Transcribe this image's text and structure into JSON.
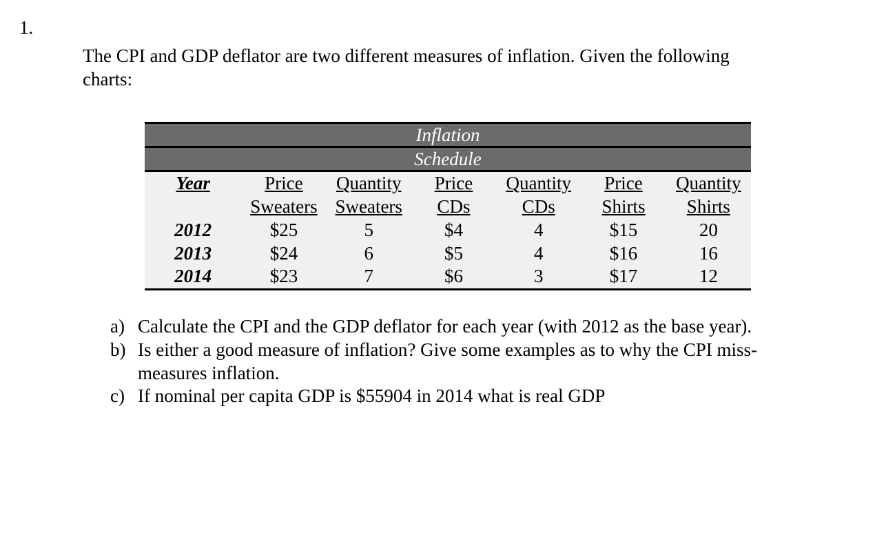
{
  "question_number": "1.",
  "intro": "The CPI and GDP deflator are two different measures of inflation.  Given the following charts:",
  "table": {
    "title_line1": "Inflation",
    "title_line2": "Schedule",
    "columns": [
      {
        "line1": "Year",
        "line2": ""
      },
      {
        "line1": "Price",
        "line2": "Sweaters"
      },
      {
        "line1": "Quantity",
        "line2": "Sweaters"
      },
      {
        "line1": "Price",
        "line2": "CDs"
      },
      {
        "line1": "Quantity",
        "line2": "CDs"
      },
      {
        "line1": "Price",
        "line2": "Shirts"
      },
      {
        "line1": "Quantity",
        "line2": "Shirts"
      }
    ],
    "rows": [
      [
        "2012",
        "$25",
        "5",
        "$4",
        "4",
        "$15",
        "20"
      ],
      [
        "2013",
        "$24",
        "6",
        "$5",
        "4",
        "$16",
        "16"
      ],
      [
        "2014",
        "$23",
        "7",
        "$6",
        "3",
        "$17",
        "12"
      ]
    ],
    "title_bg": "#6b6b6b",
    "title_fg": "#ffffff",
    "body_bg": "#f0f0f0",
    "border_color": "#000000"
  },
  "subs": [
    {
      "label": "a)",
      "text": "Calculate the CPI and the GDP deflator for each year (with 2012 as the base year)."
    },
    {
      "label": "b)",
      "text": "Is either a good measure of inflation?  Give some examples as to why the CPI miss-measures inflation."
    },
    {
      "label": "c)",
      "text": "If nominal per capita GDP is $55904 in 2014 what is real GDP"
    }
  ]
}
